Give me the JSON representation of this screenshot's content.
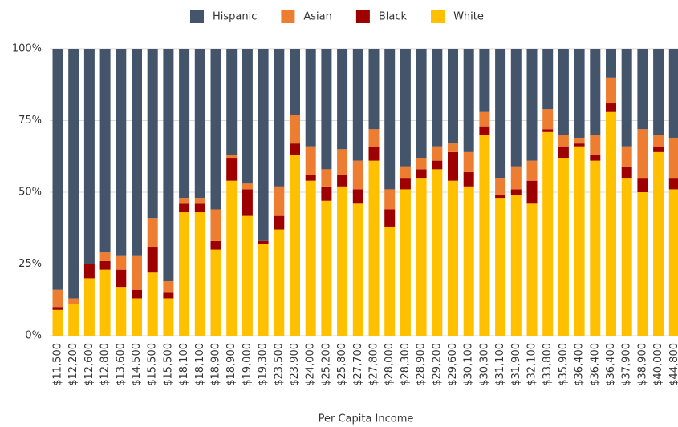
{
  "chart_data": {
    "type": "bar",
    "stacked": true,
    "x_label": "Per Capita Income",
    "categories": [
      "$11,500",
      "$12,200",
      "$12,600",
      "$12,800",
      "$13,600",
      "$14,500",
      "$15,500",
      "$15,500",
      "$18,100",
      "$18,100",
      "$18,900",
      "$18,900",
      "$19,000",
      "$19,300",
      "$23,500",
      "$23,900",
      "$24,000",
      "$25,200",
      "$25,800",
      "$27,700",
      "$27,800",
      "$28,000",
      "$28,300",
      "$28,900",
      "$29,200",
      "$29,600",
      "$30,100",
      "$30,300",
      "$31,100",
      "$31,900",
      "$32,100",
      "$33,800",
      "$35,900",
      "$36,400",
      "$36,400",
      "$36,400",
      "$37,900",
      "$38,900",
      "$40,000",
      "$44,800"
    ],
    "series": [
      {
        "name": "Hispanic",
        "color": "#44546a",
        "values": [
          84,
          87,
          75,
          71,
          72,
          72,
          59,
          81,
          52,
          52,
          56,
          37,
          47,
          67,
          48,
          23,
          34,
          42,
          35,
          39,
          28,
          49,
          41,
          38,
          34,
          33,
          36,
          22,
          45,
          41,
          39,
          21,
          30,
          31,
          30,
          10,
          34,
          28,
          30,
          31
        ]
      },
      {
        "name": "Asian",
        "color": "#ed7d31",
        "values": [
          6,
          2,
          0,
          3,
          5,
          12,
          10,
          4,
          2,
          2,
          11,
          1,
          2,
          0,
          10,
          10,
          10,
          6,
          9,
          10,
          6,
          7,
          4,
          4,
          5,
          3,
          7,
          5,
          6,
          8,
          7,
          7,
          4,
          2,
          7,
          9,
          7,
          17,
          4,
          14
        ]
      },
      {
        "name": "Black",
        "color": "#9e0000",
        "values": [
          1,
          0,
          5,
          3,
          6,
          3,
          9,
          2,
          3,
          3,
          3,
          8,
          9,
          1,
          5,
          4,
          2,
          5,
          4,
          5,
          5,
          6,
          4,
          3,
          3,
          10,
          5,
          3,
          1,
          2,
          8,
          1,
          4,
          1,
          2,
          3,
          4,
          5,
          2,
          4
        ]
      },
      {
        "name": "White",
        "color": "#ffc000",
        "values": [
          9,
          11,
          20,
          23,
          17,
          13,
          22,
          13,
          43,
          43,
          30,
          54,
          42,
          32,
          37,
          63,
          54,
          47,
          52,
          46,
          61,
          38,
          51,
          55,
          58,
          54,
          52,
          70,
          48,
          49,
          46,
          71,
          62,
          66,
          61,
          78,
          55,
          50,
          64,
          51
        ]
      }
    ],
    "ylim": [
      0,
      100
    ],
    "yticks": [
      {
        "value": 0,
        "label": "0%"
      },
      {
        "value": 25,
        "label": "25%"
      },
      {
        "value": 50,
        "label": "50%"
      },
      {
        "value": 75,
        "label": "75%"
      },
      {
        "value": 100,
        "label": "100%"
      }
    ],
    "grid": true,
    "legend": "top"
  }
}
